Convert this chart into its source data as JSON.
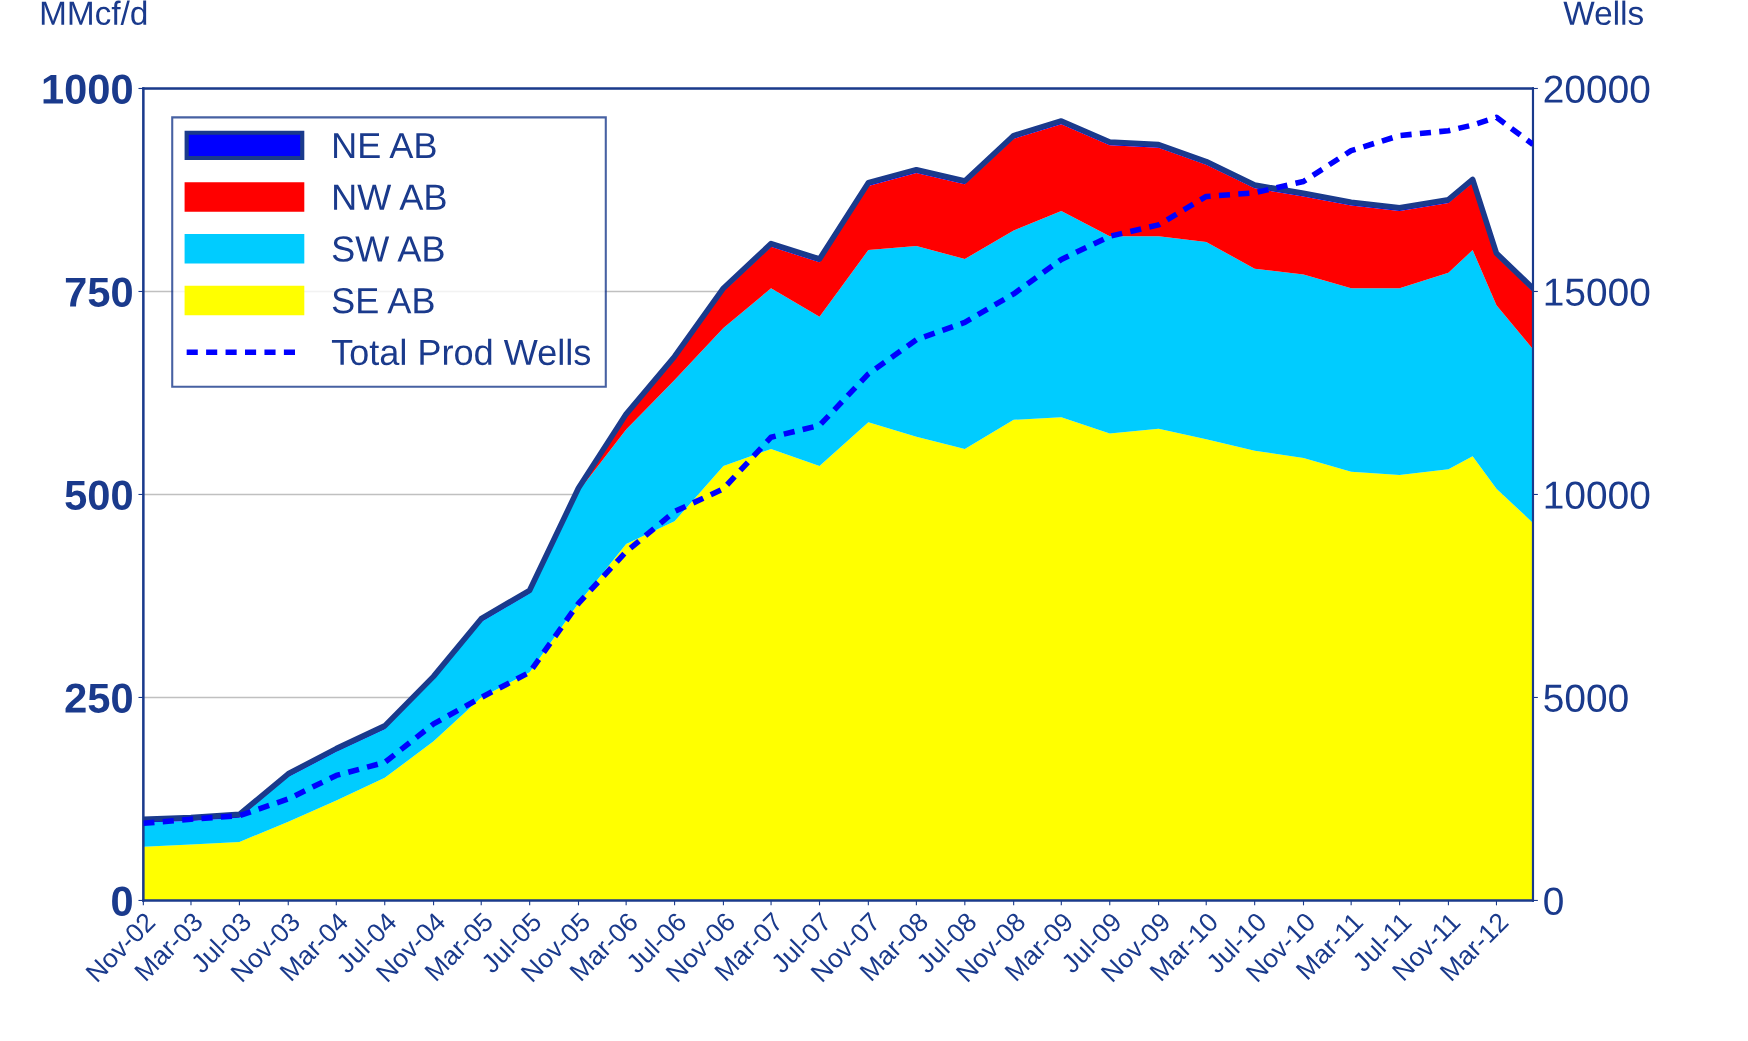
{
  "chart_data": {
    "type": "area",
    "stacked": true,
    "ylabel": "MMcf/d",
    "y2label": "Wells",
    "x": [
      "2002-11",
      "2003-03",
      "2003-07",
      "2003-11",
      "2004-03",
      "2004-07",
      "2004-11",
      "2005-03",
      "2005-07",
      "2005-11",
      "2006-03",
      "2006-07",
      "2006-11",
      "2007-03",
      "2007-07",
      "2007-11",
      "2008-03",
      "2008-07",
      "2008-11",
      "2009-03",
      "2009-07",
      "2009-11",
      "2010-03",
      "2010-07",
      "2010-11",
      "2011-03",
      "2011-07",
      "2011-11",
      "2012-01",
      "2012-03",
      "2012-06"
    ],
    "series": [
      {
        "name": "SE AB",
        "color": "#ffff00",
        "values": [
          66,
          69,
          72,
          97,
          123,
          151,
          196,
          250,
          281,
          366,
          439,
          467,
          535,
          556,
          535,
          589,
          571,
          556,
          592,
          595,
          575,
          581,
          568,
          554,
          545,
          528,
          524,
          531,
          547,
          507,
          465
        ]
      },
      {
        "name": "SW AB",
        "color": "#00ccff",
        "values": [
          30,
          29,
          30,
          55,
          60,
          60,
          76,
          93,
          97,
          138,
          141,
          174,
          170,
          198,
          184,
          212,
          235,
          234,
          233,
          254,
          243,
          237,
          243,
          224,
          226,
          226,
          230,
          242,
          254,
          226,
          214
        ]
      },
      {
        "name": "NW AB",
        "color": "#ff0000",
        "values": [
          0,
          0,
          0,
          0,
          0,
          0,
          0,
          0,
          0,
          0,
          15,
          25,
          45,
          51,
          67,
          79,
          90,
          92,
          113,
          107,
          112,
          109,
          95,
          99,
          96,
          102,
          95,
          86,
          83,
          60,
          71
        ]
      },
      {
        "name": "NE AB",
        "color": "#0000ff",
        "values": [
          4,
          4,
          4,
          4,
          4,
          4,
          4,
          4,
          4,
          4,
          4,
          4,
          4,
          4,
          4,
          4,
          4,
          4,
          4,
          4,
          4,
          4,
          4,
          4,
          4,
          4,
          4,
          4,
          4,
          4,
          4
        ]
      },
      {
        "name": "Total Prod Wells",
        "type": "line",
        "axis": "y2",
        "color": "#0000ff",
        "line_style": "dashed",
        "values": [
          1900,
          2000,
          2090,
          2500,
          3080,
          3400,
          4350,
          5000,
          5620,
          7320,
          8590,
          9580,
          10140,
          11410,
          11700,
          12970,
          13810,
          14240,
          14940,
          15790,
          16360,
          16640,
          17340,
          17430,
          17710,
          18470,
          18840,
          18960,
          19100,
          19290,
          18620
        ]
      }
    ],
    "xlim": [
      "2002-11",
      "2012-06"
    ],
    "xticks": [
      {
        "value": "2002-11",
        "label": "Nov-02"
      },
      {
        "value": "2003-03",
        "label": "Mar-03"
      },
      {
        "value": "2003-07",
        "label": "Jul-03"
      },
      {
        "value": "2003-11",
        "label": "Nov-03"
      },
      {
        "value": "2004-03",
        "label": "Mar-04"
      },
      {
        "value": "2004-07",
        "label": "Jul-04"
      },
      {
        "value": "2004-11",
        "label": "Nov-04"
      },
      {
        "value": "2005-03",
        "label": "Mar-05"
      },
      {
        "value": "2005-07",
        "label": "Jul-05"
      },
      {
        "value": "2005-11",
        "label": "Nov-05"
      },
      {
        "value": "2006-03",
        "label": "Mar-06"
      },
      {
        "value": "2006-07",
        "label": "Jul-06"
      },
      {
        "value": "2006-11",
        "label": "Nov-06"
      },
      {
        "value": "2007-03",
        "label": "Mar-07"
      },
      {
        "value": "2007-07",
        "label": "Jul-07"
      },
      {
        "value": "2007-11",
        "label": "Nov-07"
      },
      {
        "value": "2008-03",
        "label": "Mar-08"
      },
      {
        "value": "2008-07",
        "label": "Jul-08"
      },
      {
        "value": "2008-11",
        "label": "Nov-08"
      },
      {
        "value": "2009-03",
        "label": "Mar-09"
      },
      {
        "value": "2009-07",
        "label": "Jul-09"
      },
      {
        "value": "2009-11",
        "label": "Nov-09"
      },
      {
        "value": "2010-03",
        "label": "Mar-10"
      },
      {
        "value": "2010-07",
        "label": "Jul-10"
      },
      {
        "value": "2010-11",
        "label": "Nov-10"
      },
      {
        "value": "2011-03",
        "label": "Mar-11"
      },
      {
        "value": "2011-07",
        "label": "Jul-11"
      },
      {
        "value": "2011-11",
        "label": "Nov-11"
      },
      {
        "value": "2012-03",
        "label": "Mar-12"
      }
    ],
    "ylim": [
      0,
      1000
    ],
    "yticks": [
      0,
      250,
      500,
      750,
      1000
    ],
    "y2lim": [
      0,
      20000
    ],
    "y2ticks": [
      0,
      5000,
      10000,
      15000,
      20000
    ],
    "grid": "y",
    "legend": "top left"
  }
}
